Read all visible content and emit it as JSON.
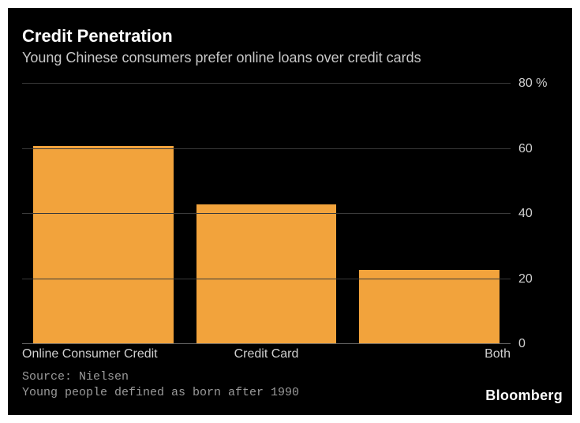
{
  "title": "Credit Penetration",
  "subtitle": "Young Chinese consumers prefer online loans over credit cards",
  "chart": {
    "type": "bar",
    "background_color": "#000000",
    "bar_color": "#f2a33c",
    "grid_color": "#3a3a3a",
    "baseline_color": "#666666",
    "text_color": "#cfcfcf",
    "title_color": "#ffffff",
    "subtitle_color": "#c8c8c8",
    "title_fontsize": 22,
    "subtitle_fontsize": 18,
    "tick_fontsize": 16,
    "y_unit": "%",
    "ylim": [
      0,
      80
    ],
    "ytick_step": 20,
    "yticks": [
      0,
      20,
      40,
      60,
      80
    ],
    "bar_width_ratio": 0.86,
    "categories": [
      "Online Consumer Credit",
      "Credit Card",
      "Both"
    ],
    "values": [
      60.9,
      42.9,
      22.7
    ]
  },
  "footnotes": {
    "source": "Source: Nielsen",
    "definition": "Young people defined as born after 1990",
    "color": "#9a9a9a"
  },
  "brand": "Bloomberg"
}
